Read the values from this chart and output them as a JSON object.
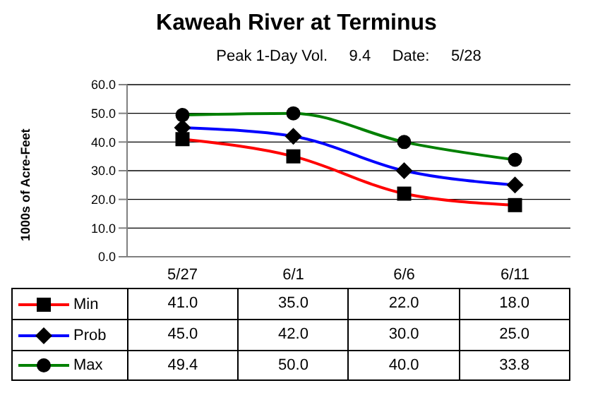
{
  "chart_data": {
    "type": "line",
    "title": "Kaweah River at Terminus",
    "subtitle": "Peak 1-Day Vol.     9.4     Date:     5/28",
    "ylabel": "1000s of Acre-Feet",
    "categories": [
      "5/27",
      "6/1",
      "6/6",
      "6/11"
    ],
    "series": [
      {
        "name": "Min",
        "color": "#ff0000",
        "marker": "square",
        "values": [
          41.0,
          35.0,
          22.0,
          18.0
        ],
        "value_labels": [
          "41.0",
          "35.0",
          "22.0",
          "18.0"
        ]
      },
      {
        "name": "Prob",
        "color": "#0000ff",
        "marker": "diamond",
        "values": [
          45.0,
          42.0,
          30.0,
          25.0
        ],
        "value_labels": [
          "45.0",
          "42.0",
          "30.0",
          "25.0"
        ]
      },
      {
        "name": "Max",
        "color": "#008000",
        "marker": "circle",
        "values": [
          49.4,
          50.0,
          40.0,
          33.8
        ],
        "value_labels": [
          "49.4",
          "50.0",
          "40.0",
          "33.8"
        ]
      }
    ],
    "ylim": [
      0,
      60
    ],
    "yticks": [
      {
        "value": 0,
        "label": "0.0"
      },
      {
        "value": 10,
        "label": "10.0"
      },
      {
        "value": 20,
        "label": "20.0"
      },
      {
        "value": 30,
        "label": "30.0"
      },
      {
        "value": 40,
        "label": "40.0"
      },
      {
        "value": 50,
        "label": "50.0"
      },
      {
        "value": 60,
        "label": "60.0"
      }
    ],
    "grid": "y",
    "legend": "bottom",
    "line_style": "solid"
  }
}
